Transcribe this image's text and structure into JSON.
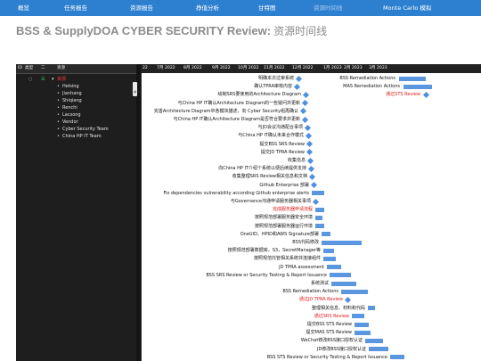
{
  "nav": {
    "tabs": [
      {
        "label": "概览",
        "active": false
      },
      {
        "label": "任务报告",
        "active": false
      },
      {
        "label": "资源报告",
        "active": false
      },
      {
        "label": "挣值分析",
        "active": false
      },
      {
        "label": "甘特图",
        "active": false
      },
      {
        "label": "资源时间线",
        "active": true
      },
      {
        "label": "Monte Carlo 模拟",
        "active": false
      }
    ]
  },
  "page_title": "BSS & SupplyDOA CYBER SECURITY Review:",
  "page_subtitle": "资源时间线",
  "left_header": {
    "col1": "ID",
    "col2": "类型",
    "col3": "二",
    "col4": "资源"
  },
  "resources": [
    {
      "name": "资源",
      "level": 0
    },
    {
      "name": "Helsing",
      "level": 1
    },
    {
      "name": "Jianhang",
      "level": 1
    },
    {
      "name": "Shiqiang",
      "level": 1
    },
    {
      "name": "Renchi",
      "level": 1
    },
    {
      "name": "Lacsong",
      "level": 1
    },
    {
      "name": "Vendor",
      "level": 1
    },
    {
      "name": "Cyber Security Team",
      "level": 1
    },
    {
      "name": "China HP IT Team",
      "level": 1
    }
  ],
  "handle_label": "甘特图",
  "months": [
    "22",
    "7月 2022",
    "8月 2022",
    "9月 2022",
    "10月 2022",
    "11月 2022",
    "12月 2022",
    "1月 2023",
    "2月 2023",
    "3月 2023"
  ],
  "colors": {
    "nav": "#2d7fd0",
    "bar": "#5b97e0",
    "milestone": "#4f8fe0",
    "alert_text": "#e01818",
    "panel": "#1e1e1e"
  },
  "tasks": [
    {
      "label": "明确本次过审系统",
      "type": "milestone"
    },
    {
      "label": "确认TPRA审核内容",
      "type": "milestone"
    },
    {
      "label": "绘制SRS要使用的Architecture Diagram",
      "type": "milestone"
    },
    {
      "label": "与China HP IT确认Architecture Diagram的一些疑问并更新",
      "type": "milestone"
    },
    {
      "label": "完善Architecture Diagram中各模块描述，向 Cyber Security组再确认",
      "type": "milestone"
    },
    {
      "label": "与China HP IT确认Architecture Diagram是否符合要求并更新",
      "type": "milestone"
    },
    {
      "label": "与JD会议沟通配合事项",
      "type": "milestone"
    },
    {
      "label": "与China HP IT确认未来合作模式",
      "type": "milestone"
    },
    {
      "label": "提交BSS SRS Review",
      "type": "milestone"
    },
    {
      "label": "提交JD TPRA Review",
      "type": "milestone"
    },
    {
      "label": "收集信息",
      "type": "milestone"
    },
    {
      "label": "向China HP IT介绍个系统以便后续提供支持",
      "type": "milestone"
    },
    {
      "label": "收集整理SRS Review相关信息和文档",
      "type": "milestone"
    },
    {
      "label": "Github Enterprise 部署",
      "type": "milestone"
    },
    {
      "label": "Fix dependencies  vulnerability according Github enterprise alerts",
      "type": "bar"
    },
    {
      "label": "与Governance沟通申请服务器相关事项",
      "type": "milestone"
    },
    {
      "label": "完成服务器申请流程",
      "type": "bar",
      "alert": true
    },
    {
      "label": "按照规范部署服务器安全环境",
      "type": "bar"
    },
    {
      "label": "按照规范部署服务器运行环境",
      "type": "bar"
    },
    {
      "label": "OneUID、HPID和AWS Signature部署",
      "type": "bar"
    },
    {
      "label": "BSS代码修改",
      "type": "bar"
    },
    {
      "label": "按照规范部署数据库，S3，SecretManager等",
      "type": "bar"
    },
    {
      "label": "按照规范托管相关系统并连接组件",
      "type": "bar"
    },
    {
      "label": "JD TPRA assessment",
      "type": "bar"
    },
    {
      "label": "BSS SRS Review or Security Testing & Report Issuance",
      "type": "bar"
    },
    {
      "label": "系统测试",
      "type": "bar"
    },
    {
      "label": "BSS Remediation Actions",
      "type": "bar"
    },
    {
      "label": "通过JD TPRA Review",
      "type": "milestone",
      "alert": true
    },
    {
      "label": "整理相关信息、材料和代码",
      "type": "bar"
    },
    {
      "label": "通过SRS Review",
      "type": "bar",
      "alert": true
    },
    {
      "label": "提交BSS STS Review",
      "type": "bar"
    },
    {
      "label": "提交MAS STS Review",
      "type": "bar"
    },
    {
      "label": "WeChat修改BSS接口授权认证",
      "type": "bar"
    },
    {
      "label": "JD修改BSS接口授权认证",
      "type": "bar"
    },
    {
      "label": "BSS STS Review or Security Testing & Report Issuance",
      "type": "bar"
    }
  ],
  "right_tasks": [
    {
      "label": "BSS Remediation Actions",
      "type": "bar"
    },
    {
      "label": "MAS Remediation Actions",
      "type": "bar"
    },
    {
      "label": "通过STS Review",
      "type": "milestone",
      "alert": true
    }
  ]
}
